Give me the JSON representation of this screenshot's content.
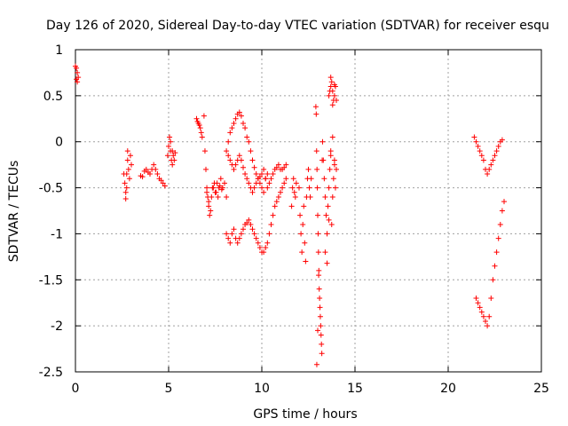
{
  "chart_data": {
    "type": "scatter",
    "title": "Day 126 of 2020, Sidereal Day-to-day VTEC variation (SDTVAR) for receiver esqu",
    "xlabel": "GPS time / hours",
    "ylabel": "SDTVAR / TECUs",
    "xlim": [
      0,
      25
    ],
    "ylim": [
      -2.5,
      1
    ],
    "xticks": [
      0,
      5,
      10,
      15,
      20,
      25
    ],
    "yticks": [
      1,
      0.5,
      0,
      -0.5,
      -1,
      -1.5,
      -2,
      -2.5
    ],
    "xtick_labels": [
      "0",
      "5",
      "10",
      "15",
      "20",
      "25"
    ],
    "ytick_labels": [
      "1",
      "0.5",
      "0",
      "-0.5",
      "-1",
      "-1.5",
      "-2",
      "-2.5"
    ],
    "grid": true,
    "marker": "+",
    "color": "#ff0000",
    "series": [
      {
        "name": "SDTVAR",
        "x": [
          0.0,
          0.05,
          0.1,
          0.15,
          0.05,
          0.1,
          2.6,
          2.65,
          2.7,
          2.75,
          2.8,
          2.85,
          2.9,
          2.95,
          3.0,
          2.7,
          2.75,
          2.8,
          3.5,
          3.6,
          3.7,
          3.8,
          3.9,
          4.0,
          4.1,
          4.2,
          4.3,
          4.4,
          4.5,
          4.6,
          4.7,
          4.8,
          4.95,
          5.0,
          5.05,
          5.1,
          5.15,
          5.2,
          5.25,
          5.3,
          5.35,
          5.1,
          5.2,
          6.5,
          6.55,
          6.6,
          6.65,
          6.7,
          6.75,
          6.8,
          6.9,
          6.95,
          7.0,
          7.05,
          7.1,
          7.15,
          7.2,
          7.3,
          7.4,
          7.5,
          7.6,
          7.7,
          7.8,
          7.9,
          8.0,
          8.1,
          7.05,
          7.15,
          7.25,
          7.35,
          7.45,
          7.55,
          7.65,
          7.75,
          7.85,
          8.2,
          8.3,
          8.4,
          8.5,
          8.6,
          8.7,
          8.8,
          8.9,
          9.0,
          9.1,
          9.2,
          9.3,
          9.4,
          9.5,
          9.6,
          9.7,
          9.8,
          9.9,
          10.0,
          10.1,
          10.2,
          10.3,
          8.1,
          8.2,
          8.3,
          8.4,
          8.5,
          8.6,
          8.7,
          8.8,
          8.9,
          9.0,
          9.1,
          9.2,
          9.3,
          9.4,
          9.5,
          9.6,
          9.7,
          9.8,
          9.9,
          10.0,
          10.1,
          10.2,
          10.3,
          10.4,
          10.5,
          10.6,
          10.7,
          10.8,
          10.9,
          11.0,
          11.1,
          11.2,
          11.3,
          8.1,
          8.2,
          8.3,
          8.4,
          8.5,
          8.6,
          8.7,
          8.8,
          8.9,
          9.0,
          9.1,
          9.2,
          9.3,
          9.4,
          9.5,
          9.6,
          9.7,
          9.8,
          9.9,
          10.0,
          10.1,
          10.2,
          10.3,
          10.4,
          10.5,
          10.6,
          10.7,
          10.8,
          10.9,
          11.0,
          11.1,
          11.2,
          11.3,
          11.6,
          11.65,
          11.7,
          11.75,
          11.8,
          11.85,
          12.0,
          12.05,
          12.1,
          12.15,
          12.2,
          12.25,
          12.3,
          12.35,
          12.4,
          12.45,
          12.5,
          12.55,
          12.6,
          12.65,
          12.9,
          12.92,
          12.94,
          12.96,
          12.98,
          13.0,
          13.02,
          13.04,
          13.06,
          13.08,
          13.1,
          13.12,
          13.14,
          13.16,
          13.18,
          13.2,
          13.22,
          13.24,
          13.26,
          12.95,
          13.0,
          13.05,
          13.3,
          13.35,
          13.4,
          13.45,
          13.5,
          13.55,
          13.6,
          13.65,
          13.7,
          13.75,
          13.8,
          13.85,
          13.9,
          13.95,
          14.0,
          13.4,
          13.5,
          13.6,
          13.7,
          13.8,
          13.9,
          13.6,
          13.65,
          13.7,
          13.75,
          13.8,
          13.85,
          13.9,
          13.95,
          14.0,
          13.7,
          13.8,
          13.9,
          21.4,
          21.5,
          21.6,
          21.7,
          21.8,
          21.9,
          22.0,
          22.1,
          22.2,
          22.3,
          22.4,
          22.5,
          22.6,
          22.7,
          22.8,
          22.9,
          21.5,
          21.6,
          21.7,
          21.8,
          21.9,
          22.0,
          22.1,
          22.2,
          22.3,
          22.4,
          22.5,
          22.6,
          22.7,
          22.8,
          22.9,
          23.0
        ],
        "y": [
          0.82,
          0.8,
          0.75,
          0.7,
          0.68,
          0.65,
          -0.35,
          -0.45,
          -0.55,
          -0.35,
          -0.2,
          -0.3,
          -0.4,
          -0.15,
          -0.25,
          -0.62,
          -0.5,
          -0.1,
          -0.37,
          -0.38,
          -0.32,
          -0.3,
          -0.33,
          -0.35,
          -0.3,
          -0.25,
          -0.3,
          -0.35,
          -0.4,
          -0.42,
          -0.45,
          -0.48,
          -0.15,
          -0.05,
          0.05,
          -0.1,
          -0.2,
          -0.1,
          -0.15,
          -0.2,
          -0.12,
          0.0,
          -0.25,
          0.25,
          0.22,
          0.2,
          0.18,
          0.15,
          0.1,
          0.05,
          0.28,
          -0.1,
          -0.3,
          -0.5,
          -0.6,
          -0.7,
          -0.8,
          -0.6,
          -0.5,
          -0.55,
          -0.45,
          -0.5,
          -0.4,
          -0.5,
          -0.45,
          -0.6,
          -0.55,
          -0.65,
          -0.75,
          -0.5,
          -0.45,
          -0.55,
          -0.6,
          -0.48,
          -0.52,
          0.0,
          0.1,
          0.15,
          0.2,
          0.25,
          0.3,
          0.32,
          0.28,
          0.2,
          0.15,
          0.05,
          0.0,
          -0.1,
          -0.2,
          -0.28,
          -0.35,
          -0.4,
          -0.45,
          -0.5,
          -0.55,
          -0.4,
          -0.35,
          -0.1,
          -0.15,
          -0.2,
          -0.25,
          -0.3,
          -0.25,
          -0.2,
          -0.15,
          -0.2,
          -0.28,
          -0.35,
          -0.4,
          -0.45,
          -0.5,
          -0.55,
          -0.5,
          -0.45,
          -0.4,
          -0.38,
          -0.35,
          -0.3,
          -0.4,
          -0.5,
          -0.45,
          -0.4,
          -0.35,
          -0.3,
          -0.28,
          -0.25,
          -0.3,
          -0.3,
          -0.28,
          -0.25,
          -1.0,
          -1.05,
          -1.1,
          -1.0,
          -0.95,
          -1.05,
          -1.1,
          -1.05,
          -1.0,
          -0.95,
          -0.9,
          -0.88,
          -0.85,
          -0.9,
          -0.95,
          -1.0,
          -1.05,
          -1.1,
          -1.15,
          -1.2,
          -1.2,
          -1.15,
          -1.1,
          -1.0,
          -0.9,
          -0.8,
          -0.7,
          -0.65,
          -0.6,
          -0.55,
          -0.5,
          -0.45,
          -0.4,
          -0.7,
          -0.5,
          -0.4,
          -0.55,
          -0.6,
          -0.45,
          -0.5,
          -0.8,
          -1.0,
          -1.2,
          -0.9,
          -0.7,
          -1.1,
          -1.3,
          -0.6,
          -0.4,
          -0.3,
          -0.5,
          -0.6,
          -0.4,
          0.38,
          0.3,
          -0.1,
          -0.3,
          -0.5,
          -0.8,
          -1.0,
          -1.2,
          -1.4,
          -1.6,
          -1.7,
          -1.8,
          -1.9,
          -2.0,
          -2.1,
          -2.2,
          -2.3,
          -0.2,
          0.0,
          -2.42,
          -2.05,
          -1.45,
          -0.2,
          -0.4,
          -0.6,
          -0.8,
          -1.0,
          -0.7,
          -0.5,
          -0.3,
          -0.1,
          -0.9,
          -0.6,
          -0.4,
          -0.2,
          -0.5,
          -0.3,
          -1.2,
          -1.32,
          -0.85,
          -0.15,
          0.05,
          -0.25,
          0.5,
          0.55,
          0.6,
          0.65,
          0.55,
          0.45,
          0.5,
          0.6,
          0.45,
          0.7,
          0.4,
          0.62,
          0.05,
          0.0,
          -0.05,
          -0.1,
          -0.15,
          -0.2,
          -0.3,
          -0.35,
          -0.3,
          -0.25,
          -0.2,
          -0.15,
          -0.1,
          -0.05,
          0.0,
          0.02,
          -1.7,
          -1.75,
          -1.8,
          -1.85,
          -1.9,
          -1.95,
          -2.0,
          -1.9,
          -1.7,
          -1.5,
          -1.35,
          -1.2,
          -1.05,
          -0.9,
          -0.75,
          -0.65
        ]
      }
    ]
  }
}
